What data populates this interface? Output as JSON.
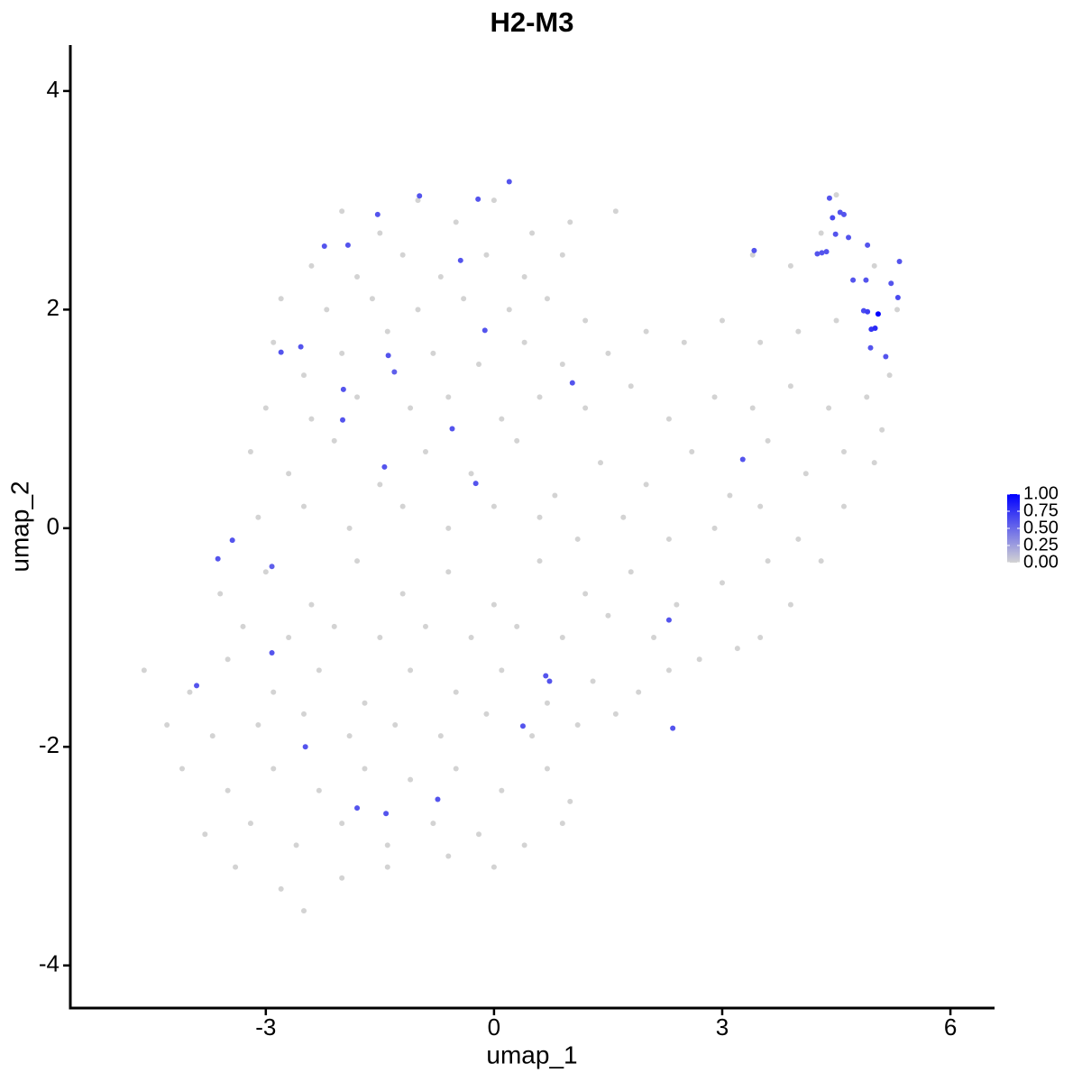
{
  "chart_data": {
    "type": "scatter",
    "title": "H2-M3",
    "x_label": "umap_1",
    "y_label": "umap_2",
    "xlim": [
      -5.57,
      6.58
    ],
    "ylim": [
      -4.39,
      4.42
    ],
    "xticks": [
      -3,
      0,
      3,
      6
    ],
    "yticks": [
      -4,
      -2,
      0,
      2,
      4
    ],
    "grid": false,
    "colors": [
      "#d3d3d3",
      "#0000ff"
    ],
    "legend_ticks": [
      {
        "value": 0,
        "label": "0.00"
      },
      {
        "value": 0.25,
        "label": "0.25"
      },
      {
        "value": 0.5,
        "label": "0.50"
      },
      {
        "value": 0.75,
        "label": "0.75"
      },
      {
        "value": 1,
        "label": "1.00"
      }
    ],
    "legend_position": "right",
    "background": {
      "x": [
        -2.0,
        -1.5,
        -1.0,
        -0.5,
        0,
        0.5,
        1.0,
        1.6,
        -2.4,
        -1.8,
        -1.2,
        -0.7,
        -0.1,
        0.4,
        0.9,
        -2.8,
        -2.2,
        -1.6,
        -1.0,
        -0.4,
        0.2,
        0.7,
        1.2,
        -2.9,
        -2.5,
        -2.0,
        -1.4,
        -0.8,
        -0.2,
        0.4,
        0.9,
        1.5,
        2.0,
        2.5,
        3.0,
        3.5,
        4.0,
        4.5,
        -3.0,
        -2.4,
        -1.8,
        -1.1,
        -0.6,
        0.1,
        0.6,
        1.2,
        1.8,
        2.3,
        2.9,
        3.4,
        3.9,
        4.4,
        4.9,
        -3.2,
        -2.7,
        -2.1,
        -1.5,
        -0.9,
        -0.3,
        0.3,
        0.8,
        1.4,
        2.0,
        2.6,
        3.1,
        3.6,
        4.1,
        4.6,
        5.1,
        -3.1,
        -2.5,
        -1.9,
        -1.2,
        -0.6,
        0.0,
        0.6,
        1.1,
        1.7,
        2.3,
        2.9,
        3.5,
        4.0,
        4.6,
        -3.6,
        -3.0,
        -2.4,
        -1.8,
        -1.2,
        -0.6,
        0.0,
        0.6,
        1.2,
        1.8,
        2.4,
        3.0,
        3.6,
        -3.3,
        -2.7,
        -2.1,
        -1.5,
        -0.9,
        -0.3,
        0.3,
        0.9,
        1.5,
        2.1,
        2.7,
        3.2,
        -4.6,
        -4.0,
        -3.5,
        -2.9,
        -2.3,
        -1.7,
        -1.1,
        -0.5,
        0.1,
        0.7,
        1.3,
        1.9,
        2.3,
        -4.3,
        -3.7,
        -3.1,
        -2.5,
        -1.9,
        -1.3,
        -0.7,
        -0.1,
        0.5,
        1.1,
        1.6,
        -4.1,
        -3.5,
        -2.9,
        -2.3,
        -1.7,
        -1.1,
        -0.5,
        0.1,
        0.7,
        1.0,
        -3.8,
        -3.2,
        -2.6,
        -2.0,
        -1.4,
        -0.8,
        -0.2,
        0.4,
        0.9,
        -3.4,
        -2.8,
        -2.5,
        -2.0,
        -1.4,
        -0.6,
        0.0,
        3.4,
        3.9,
        4.3,
        4.5,
        5.0,
        5.3,
        5.2,
        5.0,
        4.3,
        3.9,
        3.5
      ],
      "y": [
        2.9,
        2.7,
        3.0,
        2.8,
        3.0,
        2.7,
        2.8,
        2.9,
        2.4,
        2.3,
        2.5,
        2.3,
        2.5,
        2.3,
        2.5,
        2.1,
        2.0,
        2.1,
        2.0,
        2.1,
        2.0,
        2.1,
        1.9,
        1.7,
        1.4,
        1.6,
        1.8,
        1.6,
        1.5,
        1.7,
        1.5,
        1.6,
        1.8,
        1.7,
        1.9,
        1.7,
        1.8,
        1.9,
        1.1,
        1.0,
        1.2,
        1.1,
        1.2,
        1.0,
        1.2,
        1.1,
        1.3,
        1.0,
        1.2,
        1.1,
        1.3,
        1.1,
        1.2,
        0.7,
        0.5,
        0.8,
        0.4,
        0.7,
        0.5,
        0.8,
        0.3,
        0.6,
        0.4,
        0.7,
        0.3,
        0.8,
        0.5,
        0.7,
        0.9,
        0.1,
        0.2,
        0.0,
        0.2,
        0.0,
        0.2,
        0.1,
        -0.1,
        0.1,
        -0.1,
        0.0,
        0.2,
        -0.1,
        0.2,
        -0.6,
        -0.4,
        -0.7,
        -0.3,
        -0.6,
        -0.4,
        -0.7,
        -0.3,
        -0.6,
        -0.4,
        -0.7,
        -0.5,
        -0.3,
        -0.9,
        -1.0,
        -0.9,
        -1.0,
        -0.9,
        -1.0,
        -0.9,
        -1.0,
        -0.8,
        -1.0,
        -1.2,
        -1.1,
        -1.3,
        -1.5,
        -1.2,
        -1.5,
        -1.3,
        -1.6,
        -1.3,
        -1.5,
        -1.3,
        -1.6,
        -1.4,
        -1.5,
        -1.3,
        -1.8,
        -1.9,
        -1.8,
        -1.7,
        -1.9,
        -1.8,
        -1.9,
        -1.7,
        -1.9,
        -1.8,
        -1.7,
        -2.2,
        -2.4,
        -2.2,
        -2.4,
        -2.2,
        -2.3,
        -2.2,
        -2.4,
        -2.2,
        -2.5,
        -2.8,
        -2.7,
        -2.9,
        -2.7,
        -2.9,
        -2.7,
        -2.8,
        -2.9,
        -2.7,
        -3.1,
        -3.3,
        -3.5,
        -3.2,
        -3.1,
        -3.0,
        -3.1,
        2.5,
        2.4,
        2.7,
        3.05,
        2.4,
        2.0,
        1.4,
        0.6,
        -0.3,
        -0.7,
        -1.0
      ]
    },
    "expressing": {
      "x": [
        0.2,
        -0.98,
        -0.21,
        -1.53,
        -2.23,
        -1.92,
        -0.44,
        -2.8,
        -2.54,
        -1.39,
        -1.31,
        -0.12,
        -1.98,
        -1.99,
        -0.55,
        -1.44,
        -0.24,
        1.03,
        3.27,
        -3.44,
        -3.63,
        -2.92,
        -2.92,
        -3.91,
        2.3,
        0.68,
        0.73,
        0.38,
        2.35,
        -2.48,
        -0.74,
        -1.8,
        -1.42,
        3.42,
        4.41,
        4.45,
        4.49,
        4.55,
        4.6,
        4.25,
        4.31,
        4.37,
        4.66,
        4.91,
        4.72,
        4.89,
        5.22,
        5.33,
        5.31,
        4.86,
        4.91,
        4.96,
        5.01,
        4.95,
        5.15,
        5.05
      ],
      "y": [
        3.17,
        3.04,
        3.01,
        2.87,
        2.58,
        2.59,
        2.45,
        1.61,
        1.66,
        1.58,
        1.43,
        1.81,
        1.27,
        0.99,
        0.91,
        0.56,
        0.41,
        1.33,
        0.63,
        -0.11,
        -0.28,
        -0.35,
        -1.14,
        -1.44,
        -0.84,
        -1.35,
        -1.4,
        -1.81,
        -1.83,
        -2.0,
        -2.48,
        -2.56,
        -2.61,
        2.54,
        3.02,
        2.84,
        2.69,
        2.89,
        2.87,
        2.51,
        2.52,
        2.53,
        2.66,
        2.59,
        2.27,
        2.27,
        2.24,
        2.44,
        2.11,
        1.99,
        1.98,
        1.82,
        1.83,
        1.65,
        1.57,
        1.96
      ],
      "expression": [
        0.6,
        0.6,
        0.6,
        0.6,
        0.6,
        0.6,
        0.6,
        0.6,
        0.6,
        0.6,
        0.55,
        0.6,
        0.6,
        0.6,
        0.6,
        0.6,
        0.6,
        0.6,
        0.6,
        0.6,
        0.6,
        0.55,
        0.6,
        0.6,
        0.6,
        0.6,
        0.6,
        0.6,
        0.6,
        0.6,
        0.6,
        0.6,
        0.6,
        0.6,
        0.6,
        0.65,
        0.6,
        0.6,
        0.6,
        0.6,
        0.6,
        0.6,
        0.6,
        0.6,
        0.6,
        0.6,
        0.6,
        0.6,
        0.65,
        0.65,
        0.7,
        0.75,
        0.8,
        0.6,
        0.6,
        1.0
      ]
    }
  }
}
